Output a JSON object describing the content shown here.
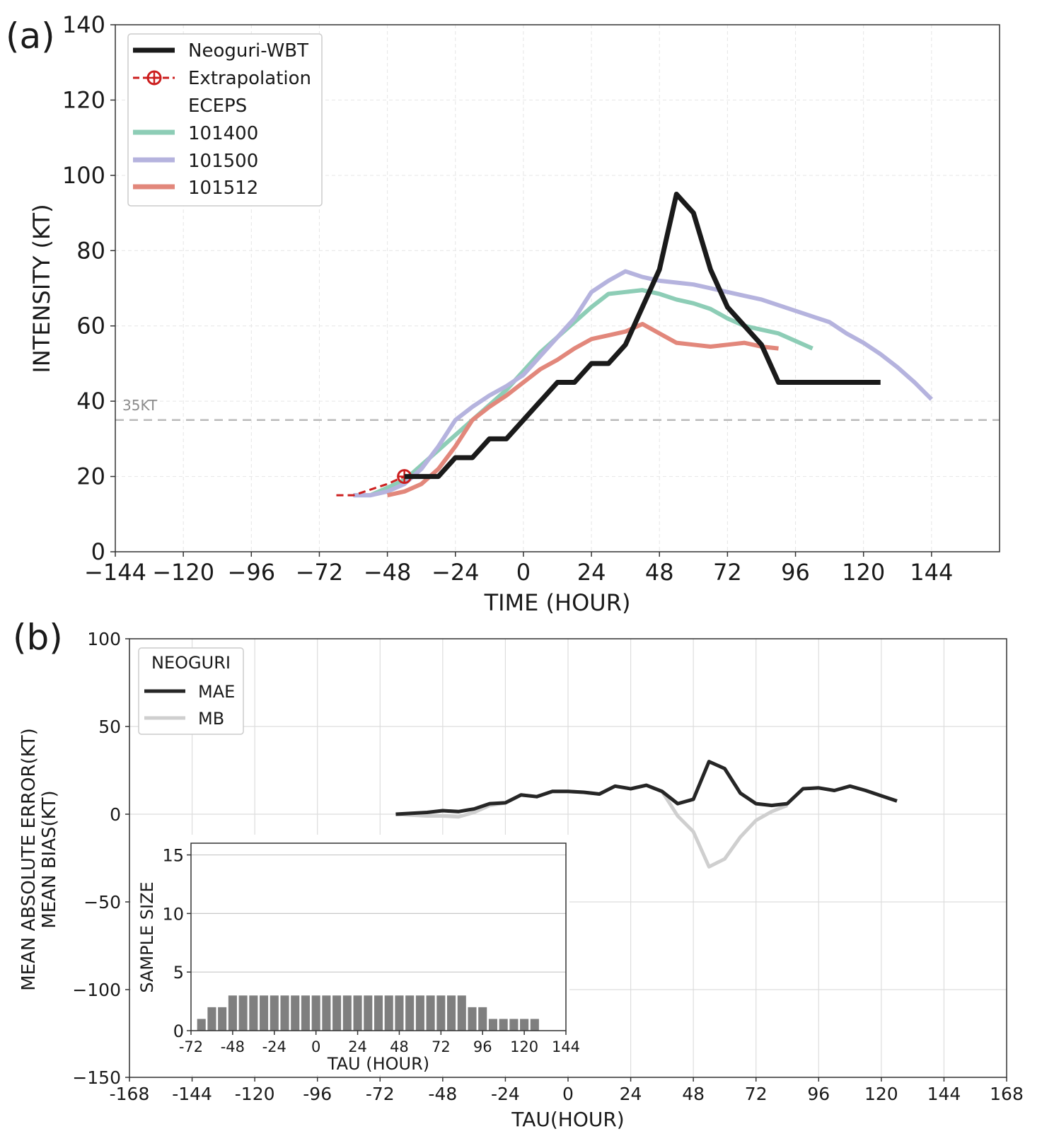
{
  "chart_data": [
    {
      "panel_label": "(a)",
      "type": "line",
      "xlabel": "TIME (HOUR)",
      "ylabel": "INTENSITY (KT)",
      "xlim": [
        -144,
        168
      ],
      "ylim": [
        0,
        140
      ],
      "xticks": [
        "−144",
        "−120",
        "−96",
        "−72",
        "−48",
        "−24",
        "0",
        "24",
        "48",
        "72",
        "96",
        "120",
        "144"
      ],
      "yticks": [
        "0",
        "20",
        "40",
        "60",
        "80",
        "100",
        "120",
        "140"
      ],
      "grid": true,
      "legend_position": "top-left",
      "legend_group_title": "ECEPS",
      "reference_line": {
        "y": 35,
        "label": "35KT",
        "color": "#bbbbbb"
      },
      "series": [
        {
          "name": "101400",
          "color": "#8dcdb6",
          "x": [
            -60,
            -54,
            -48,
            -42,
            -36,
            -30,
            -24,
            -18,
            -12,
            -6,
            0,
            6,
            12,
            18,
            24,
            30,
            36,
            42,
            48,
            54,
            60,
            66,
            72,
            78,
            84,
            90,
            96,
            102
          ],
          "y": [
            15,
            15,
            17,
            19,
            23,
            27,
            31,
            35,
            39,
            43,
            48,
            53,
            57,
            61,
            65,
            68.5,
            69,
            69.5,
            68.5,
            67,
            66,
            64.5,
            62,
            60,
            59,
            58,
            56,
            54
          ]
        },
        {
          "name": "101500",
          "color": "#b5b3de",
          "x": [
            -60,
            -54,
            -48,
            -42,
            -36,
            -30,
            -24,
            -18,
            -12,
            -6,
            0,
            6,
            12,
            18,
            24,
            30,
            36,
            42,
            48,
            54,
            60,
            66,
            72,
            78,
            84,
            90,
            96,
            102,
            108,
            114,
            120,
            126,
            132,
            138,
            144
          ],
          "y": [
            15,
            15,
            16,
            18,
            22,
            28,
            35,
            38.5,
            41.5,
            44,
            47,
            52,
            57,
            62,
            69,
            72,
            74.5,
            73,
            72,
            71.5,
            71,
            70,
            69,
            68,
            67,
            65.5,
            64,
            62.5,
            61,
            58,
            55.5,
            52.5,
            49,
            45,
            40.5
          ]
        },
        {
          "name": "101512",
          "color": "#e2877b",
          "x": [
            -48,
            -42,
            -36,
            -30,
            -24,
            -18,
            -12,
            -6,
            0,
            6,
            12,
            18,
            24,
            30,
            36,
            42,
            48,
            54,
            60,
            66,
            72,
            78,
            84,
            90
          ],
          "y": [
            15,
            16,
            18,
            22,
            28,
            35,
            38.5,
            41.5,
            45,
            48.5,
            51,
            54,
            56.5,
            57.5,
            58.5,
            60.5,
            58,
            55.5,
            55,
            54.5,
            55,
            55.5,
            54.5,
            54
          ]
        },
        {
          "name": "Extrapolation",
          "color": "#cc1f1f",
          "dashed": true,
          "marker_at_end": true,
          "x": [
            -66,
            -60,
            -54,
            -48,
            -42
          ],
          "y": [
            15,
            15,
            16.5,
            18,
            20
          ]
        },
        {
          "name": "Neoguri-WBT",
          "color": "#1a1a1a",
          "x": [
            -42,
            -36,
            -30,
            -24,
            -18,
            -12,
            -6,
            0,
            6,
            12,
            18,
            24,
            30,
            36,
            42,
            48,
            54,
            60,
            66,
            72,
            78,
            84,
            90,
            96,
            102,
            108,
            114,
            120,
            126
          ],
          "y": [
            20,
            20,
            20,
            25,
            25,
            30,
            30,
            35,
            40,
            45,
            45,
            50,
            50,
            55,
            65,
            75,
            95,
            90,
            75,
            65,
            60,
            55,
            45,
            45,
            45,
            45,
            45,
            45,
            45
          ]
        }
      ],
      "legend_order": [
        "Neoguri-WBT",
        "Extrapolation",
        "ECEPS",
        "101400",
        "101500",
        "101512"
      ]
    },
    {
      "panel_label": "(b)",
      "type": "line",
      "xlabel": "TAU(HOUR)",
      "ylabel_line1": "MEAN ABSOLUTE ERROR(KT)",
      "ylabel_line2": "MEAN BIAS(KT)",
      "xlim": [
        -168,
        168
      ],
      "ylim": [
        -150,
        100
      ],
      "xticks": [
        "-168",
        "-144",
        "-120",
        "-96",
        "-72",
        "-48",
        "-24",
        "0",
        "24",
        "48",
        "72",
        "96",
        "120",
        "144",
        "168"
      ],
      "yticks": [
        "−150",
        "−100",
        "−50",
        "0",
        "50",
        "100"
      ],
      "grid": true,
      "legend_title": "NEOGURI",
      "legend_position": "top-left",
      "series": [
        {
          "name": "MAE",
          "color": "#262626",
          "x": [
            -66,
            -60,
            -54,
            -48,
            -42,
            -36,
            -30,
            -24,
            -18,
            -12,
            -6,
            0,
            6,
            12,
            18,
            24,
            30,
            36,
            42,
            48,
            54,
            60,
            66,
            72,
            78,
            84,
            90,
            96,
            102,
            108,
            114,
            120,
            126
          ],
          "y": [
            0,
            0.5,
            1,
            2,
            1.5,
            3,
            6,
            6.5,
            11,
            10,
            13,
            13,
            12.5,
            11.5,
            16,
            14.5,
            16.5,
            13,
            6,
            8.5,
            30,
            26,
            12,
            6,
            5,
            6,
            14.5,
            15,
            13.5,
            16,
            13.5,
            10.5,
            7.5
          ]
        },
        {
          "name": "MB",
          "color": "#cfcfcf",
          "x": [
            -66,
            -60,
            -54,
            -48,
            -42,
            -36,
            -30,
            -24,
            -18,
            -12,
            -6,
            0,
            6,
            12,
            18,
            24,
            30,
            36,
            42,
            48,
            54,
            60,
            66,
            72,
            78,
            84
          ],
          "y": [
            0,
            -0.5,
            -1,
            -1,
            -1.5,
            1,
            5,
            6.5,
            11,
            10,
            13,
            13,
            12.5,
            11.5,
            16,
            14.5,
            16.5,
            13,
            -1,
            -10,
            -30,
            -25.5,
            -13,
            -3.5,
            1.5,
            5
          ]
        }
      ]
    },
    {
      "panel_label": "inset",
      "type": "bar",
      "xlabel": "TAU (HOUR)",
      "ylabel": "SAMPLE SIZE",
      "xlim": [
        -72,
        144
      ],
      "ylim": [
        0,
        16
      ],
      "xticks": [
        "-72",
        "-48",
        "-24",
        "0",
        "24",
        "48",
        "72",
        "96",
        "120",
        "144"
      ],
      "yticks": [
        "0",
        "5",
        "10",
        "15"
      ],
      "bar_color": "#7f7f7f",
      "x": [
        -66,
        -60,
        -54,
        -48,
        -42,
        -36,
        -30,
        -24,
        -18,
        -12,
        -6,
        0,
        6,
        12,
        18,
        24,
        30,
        36,
        42,
        48,
        54,
        60,
        66,
        72,
        78,
        84,
        90,
        96,
        102,
        108,
        114,
        120,
        126
      ],
      "values": [
        1,
        2,
        2,
        3,
        3,
        3,
        3,
        3,
        3,
        3,
        3,
        3,
        3,
        3,
        3,
        3,
        3,
        3,
        3,
        3,
        3,
        3,
        3,
        3,
        3,
        3,
        2,
        2,
        1,
        1,
        1,
        1,
        1
      ]
    }
  ]
}
